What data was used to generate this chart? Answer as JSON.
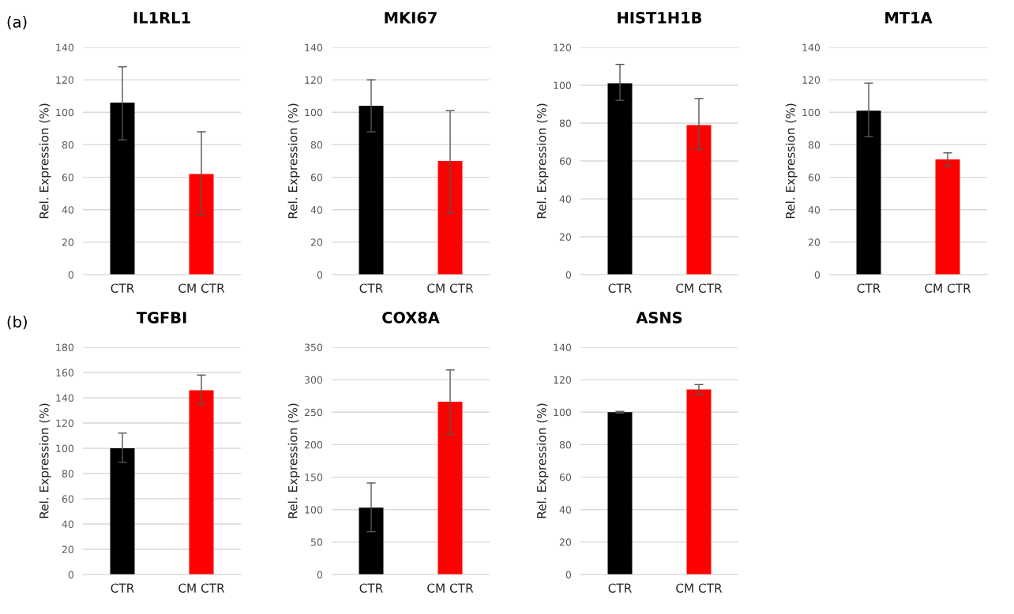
{
  "chart_data": [
    {
      "type": "bar",
      "title": "IL1RL1",
      "ylabel": "Rel. Expression (%)",
      "annotations": [
        "(a)"
      ],
      "categories": [
        "CTR",
        "CM CTR"
      ],
      "values": [
        106,
        62
      ],
      "colors": [
        "#000000",
        "#ff0000"
      ],
      "errors": [
        [
          83,
          128
        ],
        [
          37,
          88
        ]
      ],
      "ylim": [
        0,
        140
      ],
      "yticks": [
        0,
        20,
        40,
        60,
        80,
        100,
        120,
        140
      ],
      "grid": "y"
    },
    {
      "type": "bar",
      "title": "MKI67",
      "ylabel": "Rel. Expression (%)",
      "categories": [
        "CTR",
        "CM CTR"
      ],
      "values": [
        104,
        70
      ],
      "colors": [
        "#000000",
        "#ff0000"
      ],
      "errors": [
        [
          88,
          120
        ],
        [
          38,
          101
        ]
      ],
      "ylim": [
        0,
        140
      ],
      "yticks": [
        0,
        20,
        40,
        60,
        80,
        100,
        120,
        140
      ],
      "grid": "y"
    },
    {
      "type": "bar",
      "title": "HIST1H1B",
      "ylabel": "Rel. Expression (%)",
      "categories": [
        "CTR",
        "CM CTR"
      ],
      "values": [
        101,
        79
      ],
      "colors": [
        "#000000",
        "#ff0000"
      ],
      "errors": [
        [
          92,
          111
        ],
        [
          66,
          93
        ]
      ],
      "ylim": [
        0,
        120
      ],
      "yticks": [
        0,
        20,
        40,
        60,
        80,
        100,
        120
      ],
      "grid": "y"
    },
    {
      "type": "bar",
      "title": "MT1A",
      "ylabel": "Rel. Expression (%)",
      "categories": [
        "CTR",
        "CM CTR"
      ],
      "values": [
        101,
        71
      ],
      "colors": [
        "#000000",
        "#ff0000"
      ],
      "errors": [
        [
          85,
          118
        ],
        [
          67,
          75
        ]
      ],
      "ylim": [
        0,
        140
      ],
      "yticks": [
        0,
        20,
        40,
        60,
        80,
        100,
        120,
        140
      ],
      "grid": "y"
    },
    {
      "type": "bar",
      "title": "TGFBI",
      "ylabel": "Rel. Expression (%)",
      "annotations": [
        "(b)"
      ],
      "categories": [
        "CTR",
        "CM CTR"
      ],
      "values": [
        100,
        146
      ],
      "colors": [
        "#000000",
        "#ff0000"
      ],
      "errors": [
        [
          89,
          112
        ],
        [
          135,
          158
        ]
      ],
      "ylim": [
        0,
        180
      ],
      "yticks": [
        0,
        20,
        40,
        60,
        80,
        100,
        120,
        140,
        160,
        180
      ],
      "grid": "y"
    },
    {
      "type": "bar",
      "title": "COX8A",
      "ylabel": "Rel. Expression (%)",
      "categories": [
        "CTR",
        "CM CTR"
      ],
      "values": [
        103,
        266
      ],
      "colors": [
        "#000000",
        "#ff0000"
      ],
      "errors": [
        [
          66,
          141
        ],
        [
          216,
          315
        ]
      ],
      "ylim": [
        0,
        350
      ],
      "yticks": [
        0,
        50,
        100,
        150,
        200,
        250,
        300,
        350
      ],
      "grid": "y"
    },
    {
      "type": "bar",
      "title": "ASNS",
      "ylabel": "Rel. Expression (%)",
      "categories": [
        "CTR",
        "CM CTR"
      ],
      "values": [
        100,
        114
      ],
      "colors": [
        "#000000",
        "#ff0000"
      ],
      "errors": [
        0.5,
        [
          111,
          117
        ]
      ],
      "ylim": [
        0,
        140
      ],
      "yticks": [
        0,
        20,
        40,
        60,
        80,
        100,
        120,
        140
      ],
      "grid": "y"
    }
  ]
}
